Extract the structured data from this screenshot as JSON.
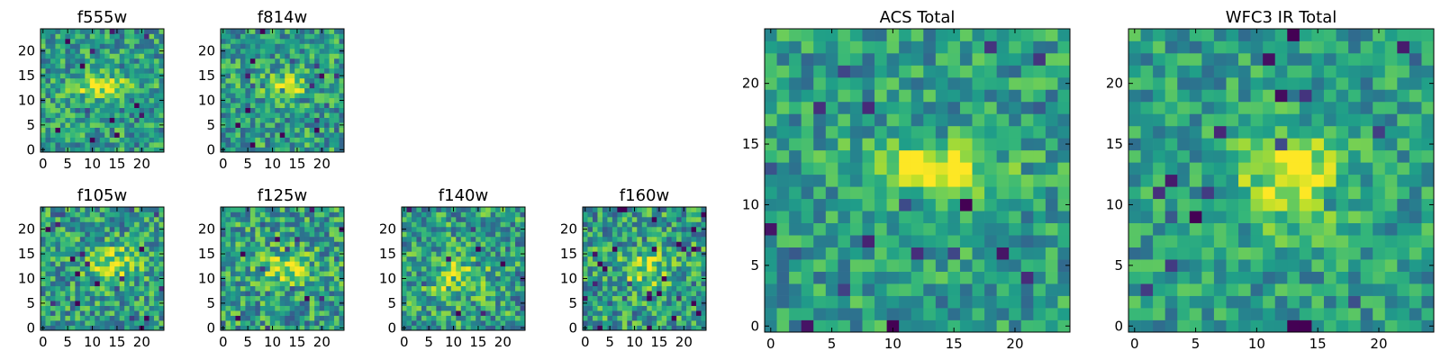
{
  "chart_data": [
    {
      "type": "heatmap",
      "title": "f555w",
      "xticks": [
        "0",
        "5",
        "10",
        "15",
        "20"
      ],
      "yticks": [
        "0",
        "5",
        "10",
        "15",
        "20"
      ],
      "xlim": [
        -0.5,
        24.5
      ],
      "ylim": [
        -0.5,
        24.5
      ],
      "grid": false,
      "colormap": "viridis",
      "peak": {
        "x": 12,
        "y": 13,
        "sx": 3.6,
        "sy": 1.4,
        "amp": 0.95
      },
      "noise": 0.32,
      "seed": 11
    },
    {
      "type": "heatmap",
      "title": "f814w",
      "xticks": [
        "0",
        "5",
        "10",
        "15",
        "20"
      ],
      "yticks": [
        "0",
        "5",
        "10",
        "15",
        "20"
      ],
      "xlim": [
        -0.5,
        24.5
      ],
      "ylim": [
        -0.5,
        24.5
      ],
      "grid": false,
      "colormap": "viridis",
      "peak": {
        "x": 12,
        "y": 13,
        "sx": 3.4,
        "sy": 1.4,
        "amp": 0.95
      },
      "noise": 0.33,
      "seed": 23
    },
    {
      "type": "heatmap",
      "title": "f105w",
      "xticks": [
        "0",
        "5",
        "10",
        "15",
        "20"
      ],
      "yticks": [
        "0",
        "5",
        "10",
        "15",
        "20"
      ],
      "xlim": [
        -0.5,
        24.5
      ],
      "ylim": [
        -0.5,
        24.5
      ],
      "grid": false,
      "colormap": "viridis",
      "peak": {
        "x": 14,
        "y": 13,
        "sx": 3.5,
        "sy": 2.5,
        "amp": 0.7
      },
      "noise": 0.35,
      "seed": 37
    },
    {
      "type": "heatmap",
      "title": "f125w",
      "xticks": [
        "0",
        "5",
        "10",
        "15",
        "20"
      ],
      "yticks": [
        "0",
        "5",
        "10",
        "15",
        "20"
      ],
      "xlim": [
        -0.5,
        24.5
      ],
      "ylim": [
        -0.5,
        24.5
      ],
      "grid": false,
      "colormap": "viridis",
      "peak": {
        "x": 13,
        "y": 12,
        "sx": 3.5,
        "sy": 2.5,
        "amp": 0.6
      },
      "noise": 0.36,
      "seed": 41
    },
    {
      "type": "heatmap",
      "title": "f140w",
      "xticks": [
        "0",
        "5",
        "10",
        "15",
        "20"
      ],
      "yticks": [
        "0",
        "5",
        "10",
        "15",
        "20"
      ],
      "xlim": [
        -0.5,
        24.5
      ],
      "ylim": [
        -0.5,
        24.5
      ],
      "grid": false,
      "colormap": "viridis",
      "peak": {
        "x": 11,
        "y": 10,
        "sx": 4,
        "sy": 3,
        "amp": 0.55
      },
      "noise": 0.36,
      "seed": 53
    },
    {
      "type": "heatmap",
      "title": "f160w",
      "xticks": [
        "0",
        "5",
        "10",
        "15",
        "20"
      ],
      "yticks": [
        "0",
        "5",
        "10",
        "15",
        "20"
      ],
      "xlim": [
        -0.5,
        24.5
      ],
      "ylim": [
        -0.5,
        24.5
      ],
      "grid": false,
      "colormap": "viridis",
      "peak": {
        "x": 12,
        "y": 12,
        "sx": 3.5,
        "sy": 2.5,
        "amp": 0.6
      },
      "noise": 0.36,
      "seed": 67
    },
    {
      "type": "heatmap",
      "title": "ACS Total",
      "xticks": [
        "0",
        "5",
        "10",
        "15",
        "20"
      ],
      "yticks": [
        "0",
        "5",
        "10",
        "15",
        "20"
      ],
      "xlim": [
        -0.5,
        24.5
      ],
      "ylim": [
        -0.5,
        24.5
      ],
      "grid": false,
      "colormap": "viridis",
      "peak": {
        "x": 13,
        "y": 13,
        "sx": 3.6,
        "sy": 1.5,
        "amp": 1.0
      },
      "noise": 0.28,
      "seed": 79
    },
    {
      "type": "heatmap",
      "title": "WFC3 IR Total",
      "xticks": [
        "0",
        "5",
        "10",
        "15",
        "20"
      ],
      "yticks": [
        "0",
        "5",
        "10",
        "15",
        "20"
      ],
      "xlim": [
        -0.5,
        24.5
      ],
      "ylim": [
        -0.5,
        24.5
      ],
      "grid": false,
      "colormap": "viridis",
      "peak": {
        "x": 13,
        "y": 12,
        "sx": 3.2,
        "sy": 2.6,
        "amp": 0.85
      },
      "noise": 0.26,
      "seed": 97
    }
  ]
}
